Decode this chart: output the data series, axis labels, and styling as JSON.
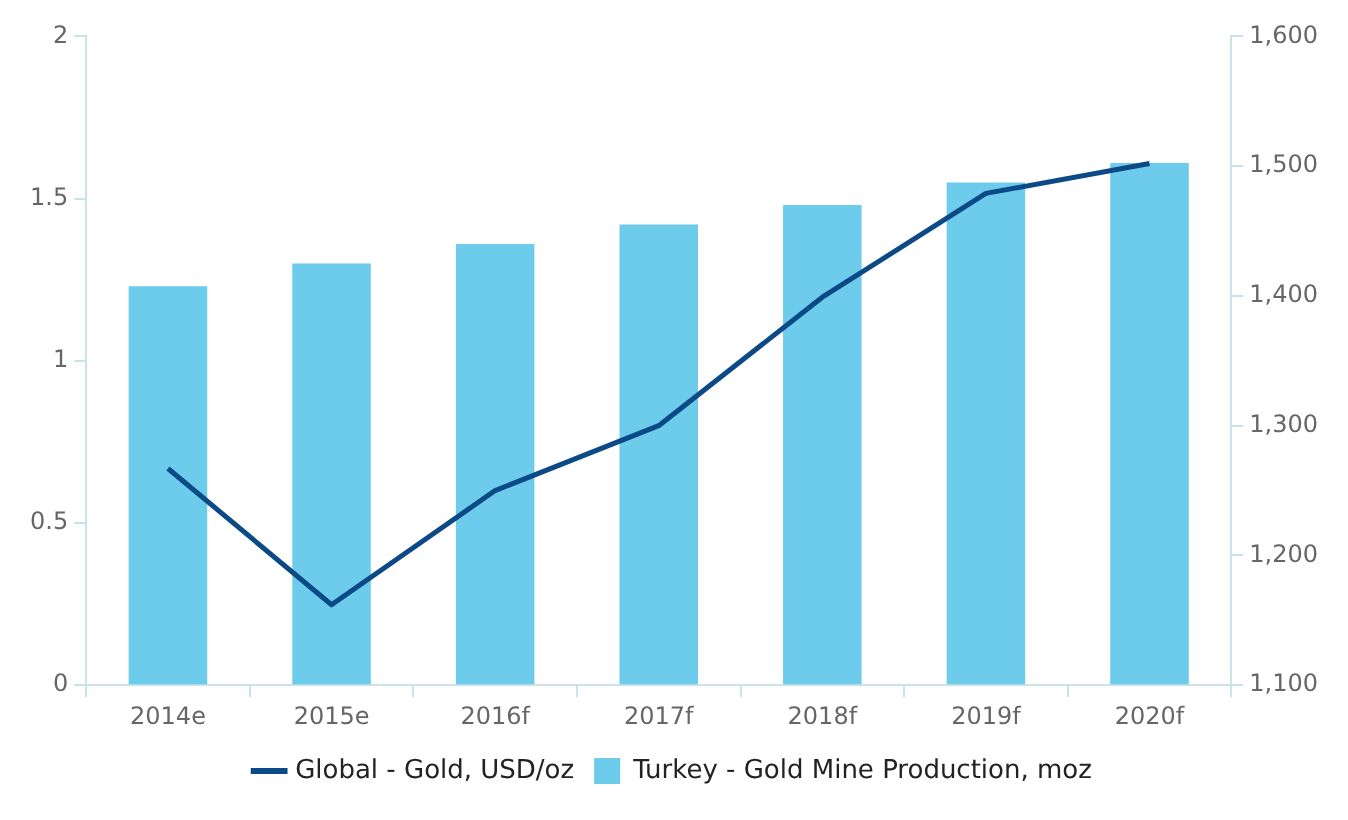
{
  "chart_data": {
    "type": "bar",
    "categories": [
      "2014e",
      "2015e",
      "2016f",
      "2017f",
      "2018f",
      "2019f",
      "2020f"
    ],
    "series": [
      {
        "name": "Global - Gold, USD/oz",
        "type": "line",
        "axis": "y2",
        "color": "#0b4a86",
        "values": [
          1267,
          1162,
          1250,
          1300,
          1399,
          1479,
          1502
        ]
      },
      {
        "name": "Turkey - Gold Mine Production, moz",
        "color": "#6dcbeb",
        "values": [
          1.23,
          1.3,
          1.36,
          1.42,
          1.48,
          1.55,
          1.61
        ]
      }
    ],
    "ylim": [
      0,
      2
    ],
    "yticks": [
      0,
      0.5,
      1,
      1.5,
      2
    ],
    "y2lim": [
      1100,
      1600
    ],
    "y2ticks": [
      {
        "value": 1100,
        "label": "1,100"
      },
      {
        "value": 1200,
        "label": "1,200"
      },
      {
        "value": 1300,
        "label": "1,300"
      },
      {
        "value": 1400,
        "label": "1,400"
      },
      {
        "value": 1500,
        "label": "1,500"
      },
      {
        "value": 1600,
        "label": "1,600"
      }
    ],
    "grid": false,
    "legend": "bottom",
    "marker": "none",
    "line_style": "solid"
  }
}
